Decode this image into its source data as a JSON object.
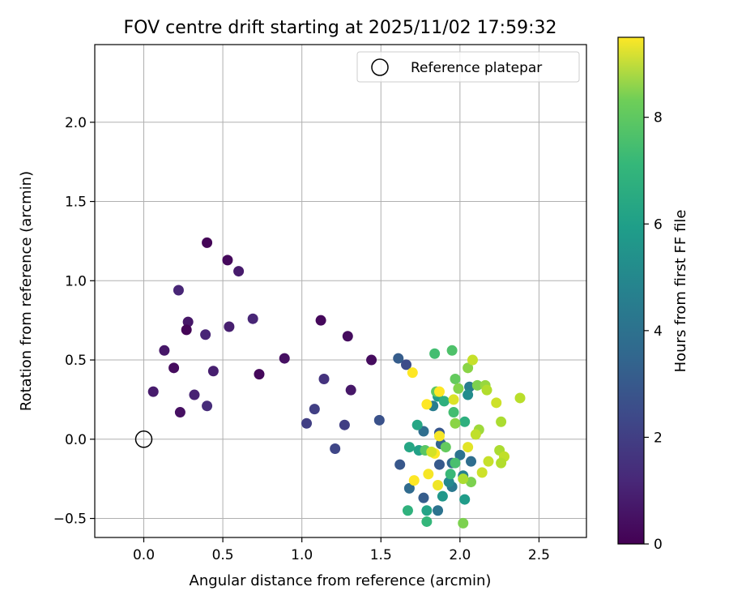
{
  "chart_data": {
    "type": "scatter",
    "title": "FOV centre drift starting at 2025/11/02 17:59:32",
    "xlabel": "Angular distance from reference (arcmin)",
    "ylabel": "Rotation from reference (arcmin)",
    "xlim": [
      -0.31,
      2.8
    ],
    "ylim": [
      -0.62,
      2.49
    ],
    "xticks": [
      0.0,
      0.5,
      1.0,
      1.5,
      2.0,
      2.5
    ],
    "xtick_labels": [
      "0.0",
      "0.5",
      "1.0",
      "1.5",
      "2.0",
      "2.5"
    ],
    "yticks": [
      -0.5,
      0.0,
      0.5,
      1.0,
      1.5,
      2.0
    ],
    "ytick_labels": [
      "−0.5",
      "0.0",
      "0.5",
      "1.0",
      "1.5",
      "2.0"
    ],
    "grid": true,
    "legend": {
      "position": "top-right",
      "entries": [
        "Reference platepar"
      ]
    },
    "reference_point": {
      "x": 0.0,
      "y": 0.0,
      "label": "Reference platepar"
    },
    "colorbar": {
      "label": "Hours from first FF file",
      "range": [
        0,
        9.5
      ],
      "ticks": [
        0,
        2,
        4,
        6,
        8
      ],
      "tick_labels": [
        "0",
        "2",
        "4",
        "6",
        "8"
      ],
      "colormap": "viridis"
    },
    "points": [
      {
        "x": 0.4,
        "y": 1.24,
        "t": 0.1
      },
      {
        "x": 0.53,
        "y": 1.13,
        "t": 0.2
      },
      {
        "x": 0.6,
        "y": 1.06,
        "t": 0.7
      },
      {
        "x": 0.22,
        "y": 0.94,
        "t": 1.0
      },
      {
        "x": 0.69,
        "y": 0.76,
        "t": 1.0
      },
      {
        "x": 1.12,
        "y": 0.75,
        "t": 0.2
      },
      {
        "x": 0.28,
        "y": 0.74,
        "t": 0.6
      },
      {
        "x": 0.27,
        "y": 0.69,
        "t": 0.1
      },
      {
        "x": 0.54,
        "y": 0.71,
        "t": 0.8
      },
      {
        "x": 0.39,
        "y": 0.66,
        "t": 1.0
      },
      {
        "x": 1.29,
        "y": 0.65,
        "t": 0.3
      },
      {
        "x": 0.13,
        "y": 0.56,
        "t": 0.6
      },
      {
        "x": 0.89,
        "y": 0.51,
        "t": 0.4
      },
      {
        "x": 1.44,
        "y": 0.5,
        "t": 0.3
      },
      {
        "x": 0.19,
        "y": 0.45,
        "t": 0.3
      },
      {
        "x": 0.44,
        "y": 0.43,
        "t": 0.8
      },
      {
        "x": 0.73,
        "y": 0.41,
        "t": 0.2
      },
      {
        "x": 1.14,
        "y": 0.38,
        "t": 1.4
      },
      {
        "x": 0.06,
        "y": 0.3,
        "t": 0.7
      },
      {
        "x": 1.31,
        "y": 0.31,
        "t": 0.6
      },
      {
        "x": 0.32,
        "y": 0.28,
        "t": 0.9
      },
      {
        "x": 0.4,
        "y": 0.21,
        "t": 1.2
      },
      {
        "x": 0.23,
        "y": 0.17,
        "t": 0.4
      },
      {
        "x": 1.08,
        "y": 0.19,
        "t": 1.8
      },
      {
        "x": 1.03,
        "y": 0.1,
        "t": 1.8
      },
      {
        "x": 1.27,
        "y": 0.09,
        "t": 1.8
      },
      {
        "x": 1.49,
        "y": 0.12,
        "t": 2.4
      },
      {
        "x": 1.21,
        "y": -0.06,
        "t": 2.0
      },
      {
        "x": 1.61,
        "y": 0.51,
        "t": 2.8
      },
      {
        "x": 1.66,
        "y": 0.47,
        "t": 2.2
      },
      {
        "x": 1.62,
        "y": -0.16,
        "t": 2.6
      },
      {
        "x": 1.68,
        "y": -0.31,
        "t": 3.3
      },
      {
        "x": 1.77,
        "y": -0.37,
        "t": 2.8
      },
      {
        "x": 1.77,
        "y": 0.05,
        "t": 3.4
      },
      {
        "x": 1.87,
        "y": 0.04,
        "t": 2.6
      },
      {
        "x": 1.88,
        "y": -0.03,
        "t": 3.0
      },
      {
        "x": 1.87,
        "y": -0.16,
        "t": 2.7
      },
      {
        "x": 1.95,
        "y": -0.15,
        "t": 3.2
      },
      {
        "x": 2.0,
        "y": -0.1,
        "t": 3.6
      },
      {
        "x": 1.95,
        "y": -0.3,
        "t": 3.8
      },
      {
        "x": 1.86,
        "y": -0.45,
        "t": 3.6
      },
      {
        "x": 1.83,
        "y": 0.21,
        "t": 4.0
      },
      {
        "x": 2.06,
        "y": 0.33,
        "t": 4.0
      },
      {
        "x": 2.05,
        "y": 0.28,
        "t": 4.6
      },
      {
        "x": 2.07,
        "y": -0.14,
        "t": 3.4
      },
      {
        "x": 2.02,
        "y": -0.23,
        "t": 4.2
      },
      {
        "x": 1.86,
        "y": 0.27,
        "t": 5.2
      },
      {
        "x": 1.93,
        "y": -0.27,
        "t": 4.5
      },
      {
        "x": 1.89,
        "y": -0.36,
        "t": 5.0
      },
      {
        "x": 1.73,
        "y": 0.09,
        "t": 5.6
      },
      {
        "x": 1.68,
        "y": -0.05,
        "t": 5.6
      },
      {
        "x": 1.74,
        "y": -0.07,
        "t": 5.4
      },
      {
        "x": 1.79,
        "y": -0.45,
        "t": 5.5
      },
      {
        "x": 2.03,
        "y": -0.38,
        "t": 5.2
      },
      {
        "x": 2.03,
        "y": 0.11,
        "t": 6.0
      },
      {
        "x": 1.9,
        "y": 0.24,
        "t": 6.0
      },
      {
        "x": 1.67,
        "y": -0.45,
        "t": 6.1
      },
      {
        "x": 1.79,
        "y": -0.52,
        "t": 6.3
      },
      {
        "x": 1.84,
        "y": 0.54,
        "t": 6.6
      },
      {
        "x": 1.95,
        "y": 0.56,
        "t": 6.8
      },
      {
        "x": 1.96,
        "y": 0.17,
        "t": 6.6
      },
      {
        "x": 1.78,
        "y": -0.07,
        "t": 7.0
      },
      {
        "x": 1.94,
        "y": -0.22,
        "t": 6.4
      },
      {
        "x": 1.97,
        "y": -0.15,
        "t": 6.7
      },
      {
        "x": 1.85,
        "y": 0.3,
        "t": 7.1
      },
      {
        "x": 1.97,
        "y": 0.38,
        "t": 7.2
      },
      {
        "x": 1.91,
        "y": -0.05,
        "t": 7.2
      },
      {
        "x": 2.02,
        "y": -0.53,
        "t": 7.6
      },
      {
        "x": 2.05,
        "y": 0.45,
        "t": 7.8
      },
      {
        "x": 1.99,
        "y": 0.32,
        "t": 7.7
      },
      {
        "x": 1.97,
        "y": 0.1,
        "t": 7.8
      },
      {
        "x": 2.07,
        "y": -0.27,
        "t": 7.6
      },
      {
        "x": 2.11,
        "y": 0.34,
        "t": 7.6
      },
      {
        "x": 2.16,
        "y": 0.34,
        "t": 8.0
      },
      {
        "x": 2.17,
        "y": 0.31,
        "t": 8.4
      },
      {
        "x": 2.12,
        "y": 0.06,
        "t": 8.1
      },
      {
        "x": 2.1,
        "y": 0.03,
        "t": 8.6
      },
      {
        "x": 2.02,
        "y": -0.25,
        "t": 8.3
      },
      {
        "x": 2.08,
        "y": 0.5,
        "t": 8.7
      },
      {
        "x": 2.23,
        "y": 0.23,
        "t": 8.8
      },
      {
        "x": 2.26,
        "y": 0.11,
        "t": 8.3
      },
      {
        "x": 2.38,
        "y": 0.26,
        "t": 8.5
      },
      {
        "x": 2.25,
        "y": -0.07,
        "t": 8.3
      },
      {
        "x": 2.28,
        "y": -0.11,
        "t": 8.6
      },
      {
        "x": 2.26,
        "y": -0.15,
        "t": 8.4
      },
      {
        "x": 2.18,
        "y": -0.14,
        "t": 8.7
      },
      {
        "x": 2.14,
        "y": -0.21,
        "t": 8.8
      },
      {
        "x": 2.05,
        "y": -0.05,
        "t": 9.1
      },
      {
        "x": 1.96,
        "y": 0.25,
        "t": 9.0
      },
      {
        "x": 1.87,
        "y": 0.3,
        "t": 9.5
      },
      {
        "x": 1.79,
        "y": 0.22,
        "t": 9.6
      },
      {
        "x": 1.7,
        "y": 0.42,
        "t": 9.5
      },
      {
        "x": 1.87,
        "y": 0.02,
        "t": 9.4
      },
      {
        "x": 1.84,
        "y": -0.09,
        "t": 9.5
      },
      {
        "x": 1.8,
        "y": -0.22,
        "t": 9.4
      },
      {
        "x": 1.71,
        "y": -0.26,
        "t": 9.5
      },
      {
        "x": 1.86,
        "y": -0.29,
        "t": 9.3
      },
      {
        "x": 1.82,
        "y": -0.08,
        "t": 8.9
      }
    ]
  }
}
